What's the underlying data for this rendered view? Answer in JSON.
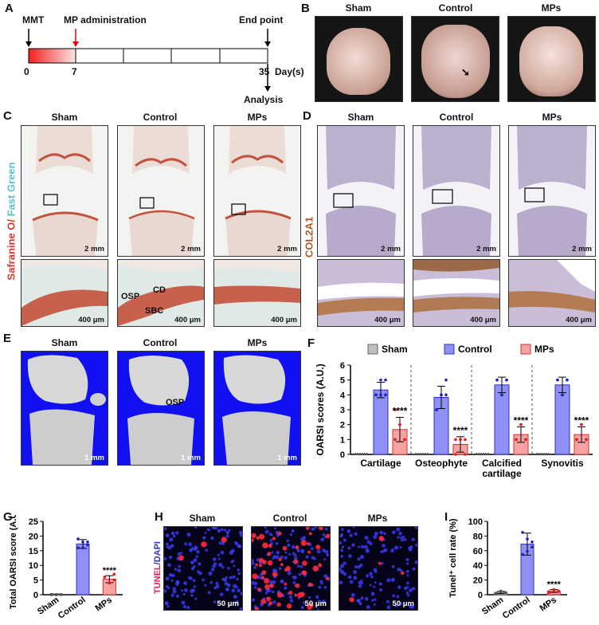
{
  "panels": {
    "a": {
      "letter": "A",
      "mmt": "MMT",
      "mp_admin": "MP administration",
      "end_point": "End point",
      "day0": "0",
      "day7": "7",
      "day35": "35",
      "day_unit": "Day(s)",
      "analysis": "Analysis"
    },
    "b": {
      "letter": "B",
      "groups": [
        "Sham",
        "Control",
        "MPs"
      ]
    },
    "c": {
      "letter": "C",
      "groups": [
        "Sham",
        "Control",
        "MPs"
      ],
      "stain_red": "Safranine O/",
      "stain_cyan": "Fast Green",
      "scale_top": "2 mm",
      "scale_bottom": "400 μm",
      "annot_osp": "OSP",
      "annot_cd": "CD",
      "annot_sbc": "SBC"
    },
    "d": {
      "letter": "D",
      "groups": [
        "Sham",
        "Control",
        "MPs"
      ],
      "stain": "COL2A1",
      "scale_top": "2 mm",
      "scale_bottom": "400 μm"
    },
    "e": {
      "letter": "E",
      "groups": [
        "Sham",
        "Control",
        "MPs"
      ],
      "scale": "1 mm",
      "annot_osp": "OSP",
      "bg_color": "#1010f0"
    },
    "f": {
      "letter": "F"
    },
    "g": {
      "letter": "G"
    },
    "h": {
      "letter": "H",
      "groups": [
        "Sham",
        "Control",
        "MPs"
      ],
      "stain_tunel": "TUNEL",
      "stain_dapi": "/DAPI",
      "scale": "50 μm"
    },
    "i": {
      "letter": "I"
    }
  },
  "colors": {
    "sham": "#bfbfbf",
    "control": "#8f8ff5",
    "mps": "#f7a3a3",
    "sig": "#000000"
  },
  "chart_data": [
    {
      "id": "F",
      "type": "bar",
      "ylabel": "OARSI scores (A.U.)",
      "ylim": [
        0,
        6
      ],
      "yticks": [
        0,
        1,
        2,
        3,
        4,
        5,
        6
      ],
      "categories": [
        "Cartilage",
        "Osteophyte",
        "Calcified cartilage",
        "Synovitis"
      ],
      "legend": [
        "Sham",
        "Control",
        "MPs"
      ],
      "legend_position": "top",
      "series": [
        {
          "name": "Sham",
          "values": [
            0,
            0,
            0,
            0
          ]
        },
        {
          "name": "Control",
          "values": [
            4.33,
            3.83,
            4.67,
            4.67
          ],
          "errors": [
            0.52,
            0.75,
            0.52,
            0.52
          ]
        },
        {
          "name": "MPs",
          "values": [
            1.67,
            0.67,
            1.33,
            1.33
          ],
          "errors": [
            0.82,
            0.52,
            0.52,
            0.52
          ]
        }
      ],
      "points": {
        "Control": [
          [
            4,
            5,
            4,
            4,
            4,
            5
          ],
          [
            3,
            4,
            4,
            3,
            4,
            5
          ],
          [
            5,
            4,
            5,
            5,
            4,
            5
          ],
          [
            5,
            4,
            5,
            5,
            4,
            5
          ]
        ],
        "MPs": [
          [
            1,
            2,
            1,
            3,
            2,
            1
          ],
          [
            0,
            1,
            0,
            1,
            1,
            1
          ],
          [
            1,
            2,
            1,
            1,
            2,
            1
          ],
          [
            1,
            2,
            1,
            1,
            2,
            1
          ]
        ]
      },
      "significance": [
        "****",
        "****",
        "****",
        "****"
      ]
    },
    {
      "id": "G",
      "type": "bar",
      "ylabel": "Total OARSI score (A.U.)",
      "ylim": [
        0,
        25
      ],
      "yticks": [
        0,
        5,
        10,
        15,
        20,
        25
      ],
      "categories": [
        "Sham",
        "Control",
        "MPs"
      ],
      "values": [
        0,
        17.3,
        5.3
      ],
      "errors": [
        0,
        1.5,
        1.2
      ],
      "points": [
        [
          0,
          0,
          0,
          0,
          0,
          0
        ],
        [
          19,
          16,
          17,
          16,
          18,
          18
        ],
        [
          6,
          4,
          5,
          6,
          4,
          7
        ]
      ],
      "significance": [
        "",
        "",
        "****"
      ]
    },
    {
      "id": "I",
      "type": "bar",
      "ylabel": "Tunel⁺ cell rate (%)",
      "ylim": [
        0,
        100
      ],
      "yticks": [
        0,
        20,
        40,
        60,
        80,
        100
      ],
      "categories": [
        "Sham",
        "Control",
        "MPs"
      ],
      "values": [
        3,
        69,
        5
      ],
      "errors": [
        1.5,
        15,
        2
      ],
      "points": [
        [
          2,
          4,
          3,
          1,
          5,
          3
        ],
        [
          85,
          76,
          72,
          55,
          59,
          65
        ],
        [
          3,
          7,
          5,
          4,
          6,
          5
        ]
      ],
      "significance": [
        "",
        "",
        "****"
      ]
    }
  ]
}
